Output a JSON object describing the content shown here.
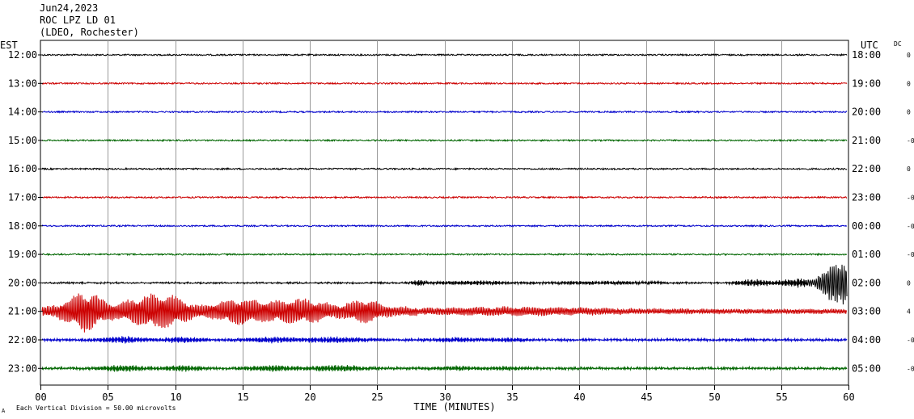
{
  "header": {
    "date": "Jun24,2023",
    "station": "ROC LPZ LD 01",
    "network": "(LDEO, Rochester)"
  },
  "chart_data": {
    "type": "line",
    "title": "",
    "left_axis_label": "EST",
    "right_axis_label": "UTC",
    "dc_label": "DC",
    "xlabel": "TIME (MINUTES)",
    "xlim": [
      0,
      60
    ],
    "x_ticks": [
      "00",
      "05",
      "10",
      "15",
      "20",
      "25",
      "30",
      "35",
      "40",
      "45",
      "50",
      "55",
      "60"
    ],
    "scale_note": "Each Vertical Division =    50.00 microvolts",
    "corner_mark": "A",
    "grid": true,
    "rows": [
      {
        "est": "12:00",
        "utc": "18:00",
        "dc": "0",
        "color": "#000000",
        "activity": "quiet"
      },
      {
        "est": "13:00",
        "utc": "19:00",
        "dc": "0",
        "color": "#cc0000",
        "activity": "quiet"
      },
      {
        "est": "14:00",
        "utc": "20:00",
        "dc": "0",
        "color": "#0000cc",
        "activity": "quiet"
      },
      {
        "est": "15:00",
        "utc": "21:00",
        "dc": "-0",
        "color": "#006600",
        "activity": "quiet"
      },
      {
        "est": "16:00",
        "utc": "22:00",
        "dc": "0",
        "color": "#000000",
        "activity": "quiet"
      },
      {
        "est": "17:00",
        "utc": "23:00",
        "dc": "-0",
        "color": "#cc0000",
        "activity": "quiet"
      },
      {
        "est": "18:00",
        "utc": "00:00",
        "dc": "-0",
        "color": "#0000cc",
        "activity": "quiet"
      },
      {
        "est": "19:00",
        "utc": "01:00",
        "dc": "-0",
        "color": "#006600",
        "activity": "quiet"
      },
      {
        "est": "20:00",
        "utc": "02:00",
        "dc": "0",
        "color": "#000000",
        "activity": "onset"
      },
      {
        "est": "21:00",
        "utc": "03:00",
        "dc": "4",
        "color": "#cc0000",
        "activity": "strong"
      },
      {
        "est": "22:00",
        "utc": "04:00",
        "dc": "-0",
        "color": "#0000cc",
        "activity": "moderate"
      },
      {
        "est": "23:00",
        "utc": "05:00",
        "dc": "-0",
        "color": "#006600",
        "activity": "moderate"
      }
    ]
  }
}
